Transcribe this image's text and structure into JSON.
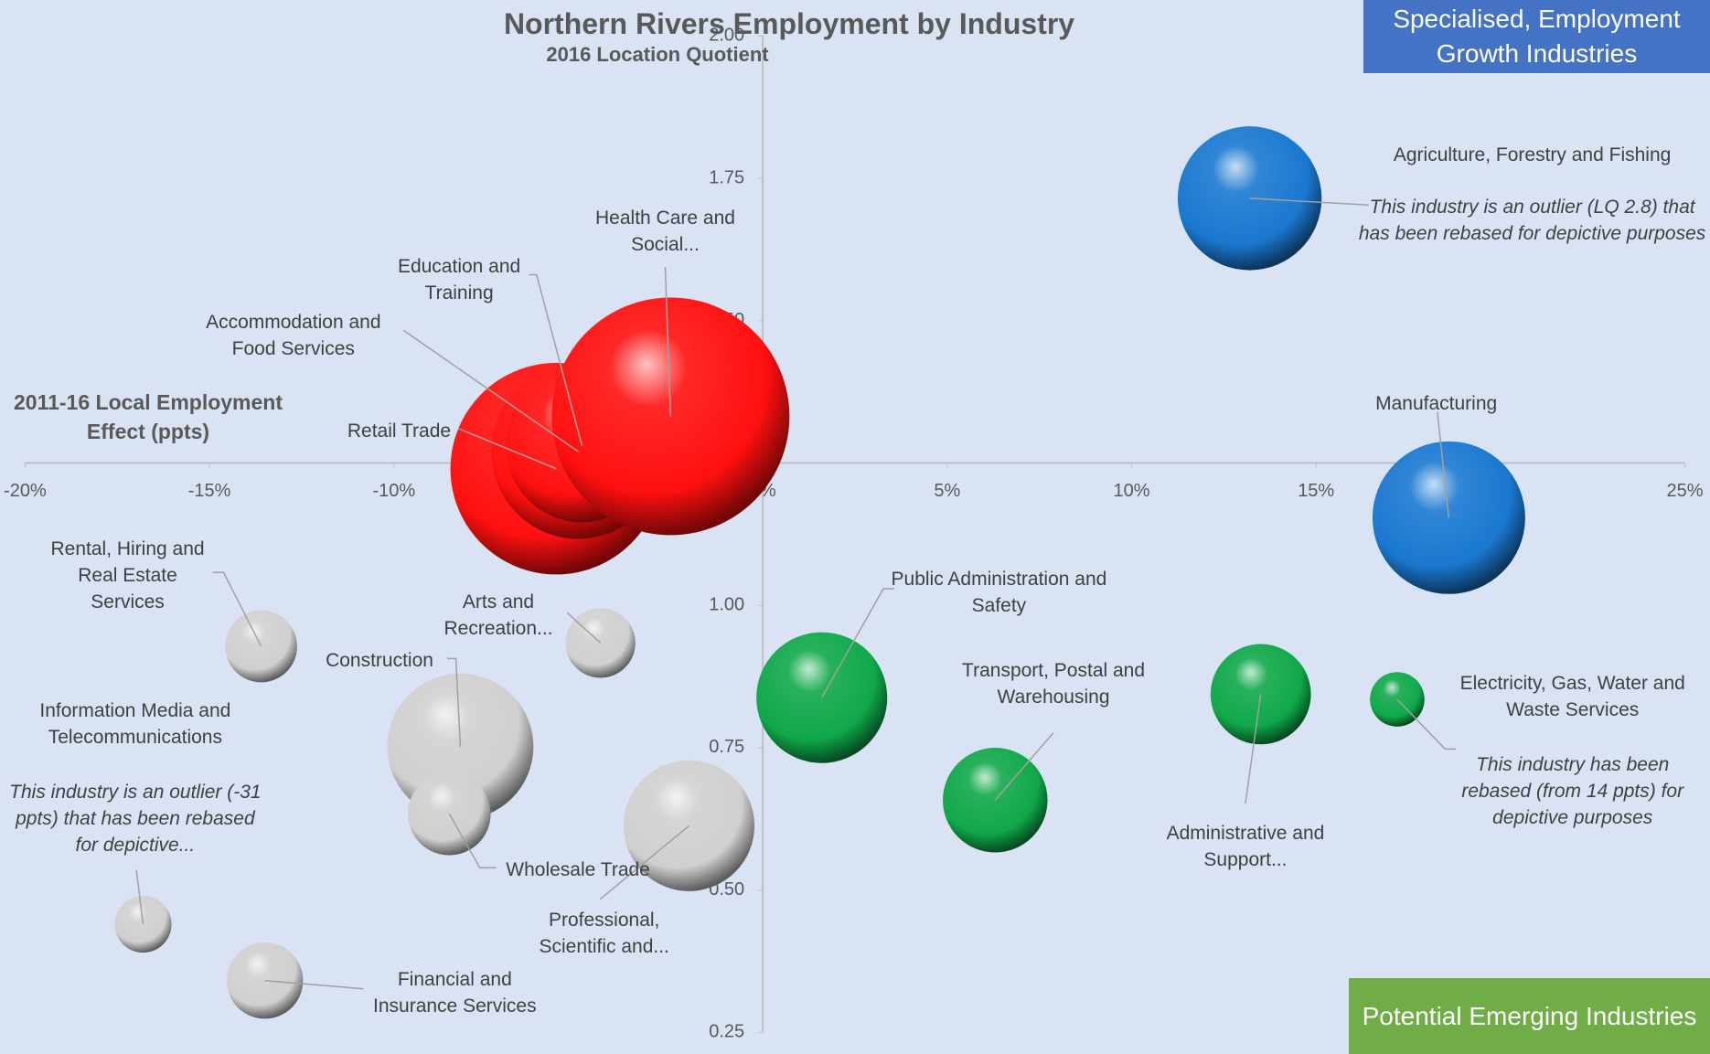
{
  "chart_data": {
    "type": "bubble",
    "title": "Northern Rivers Employment by Industry",
    "y_axis_label": "2016 Location Quotient",
    "x_axis_label": "2011-16 Local Employment Effect (ppts)",
    "quadrant_labels": [
      "Specialised, Employment Growth Industries",
      "Potential Emerging Industries"
    ],
    "quadrant_colors": [
      "#4472c4",
      "#70ad47"
    ],
    "xlim": [
      -20,
      25
    ],
    "xticks": [
      {
        "value": -20,
        "label": "-20%"
      },
      {
        "value": -15,
        "label": "-15%"
      },
      {
        "value": -10,
        "label": "-10%"
      },
      {
        "value": -5,
        "label": "-5%"
      },
      {
        "value": 0,
        "label": "0%"
      },
      {
        "value": 5,
        "label": "5%"
      },
      {
        "value": 10,
        "label": "10%"
      },
      {
        "value": 15,
        "label": "15%"
      },
      {
        "value": 20,
        "label": "20%"
      },
      {
        "value": 25,
        "label": "25%"
      }
    ],
    "ylim": [
      0.25,
      2.0
    ],
    "yticks": [
      0.25,
      {
        "value": 0.5,
        "label": "0.50"
      },
      0.75,
      {
        "value": 1,
        "label": "1.00"
      },
      1.25,
      {
        "value": 1.5,
        "label": "1.50"
      },
      1.75,
      {
        "value": 2,
        "label": "2.00"
      }
    ],
    "x_axis_crosses_at": 1.25,
    "y_axis_crosses_at": 0,
    "points": [
      {
        "label": "Agriculture, Forestry and Fishing",
        "note": "This industry is an outlier (LQ 2.8) that has been rebased for depictive purposes",
        "x": 13.2,
        "y": 1.715,
        "size": 7330,
        "color": "#1a78d0"
      },
      {
        "label": "Manufacturing",
        "x": 18.6,
        "y": 1.154,
        "size": 8250,
        "color": "#1a78d0"
      },
      {
        "label": "Retail Trade",
        "x": -5.6,
        "y": 1.24,
        "size": 15840,
        "color": "#ff1010"
      },
      {
        "label": "Accommodation and Food Services",
        "x": -5.0,
        "y": 1.27,
        "size": 10770,
        "color": "#ff1010"
      },
      {
        "label": "Education and Training",
        "x": -4.9,
        "y": 1.28,
        "size": 8250,
        "color": "#ff1010"
      },
      {
        "label": "Health Care and Social...",
        "x": -2.5,
        "y": 1.332,
        "size": 20000,
        "color": "#ff1010"
      },
      {
        "label": "Rental, Hiring and Real Estate Services",
        "x": -13.6,
        "y": 0.928,
        "size": 1830,
        "color": "#d0d0d0"
      },
      {
        "label": "Arts and Recreation...",
        "x": -4.4,
        "y": 0.934,
        "size": 1720,
        "color": "#d0d0d0"
      },
      {
        "label": "Construction",
        "x": -8.2,
        "y": 0.752,
        "size": 7560,
        "color": "#d0d0d0"
      },
      {
        "label": "Wholesale Trade",
        "x": -8.5,
        "y": 0.634,
        "size": 2430,
        "color": "#d0d0d0"
      },
      {
        "label": "Professional, Scientific and...",
        "x": -2.0,
        "y": 0.613,
        "size": 6060,
        "color": "#d0d0d0"
      },
      {
        "label": "Information Media and Telecommunications",
        "note": "This industry is an outlier (-31 ppts) that has been rebased for depictive...",
        "x": -16.8,
        "y": 0.44,
        "size": 1140,
        "color": "#d0d0d0"
      },
      {
        "label": "Financial and Insurance Services",
        "x": -13.5,
        "y": 0.341,
        "size": 2060,
        "color": "#d0d0d0"
      },
      {
        "label": "Public Administration and Safety",
        "x": 1.6,
        "y": 0.838,
        "size": 6060,
        "color": "#10a84a"
      },
      {
        "label": "Transport, Postal and Warehousing",
        "x": 6.3,
        "y": 0.658,
        "size": 3880,
        "color": "#10a84a"
      },
      {
        "label": "Administrative and Support...",
        "x": 13.5,
        "y": 0.844,
        "size": 3560,
        "color": "#10a84a"
      },
      {
        "label": "Electricity, Gas, Water and Waste Services",
        "note": "This industry has been rebased (from 14 ppts) for depictive purposes",
        "x": 17.2,
        "y": 0.835,
        "size": 1050,
        "color": "#10a84a"
      }
    ]
  }
}
